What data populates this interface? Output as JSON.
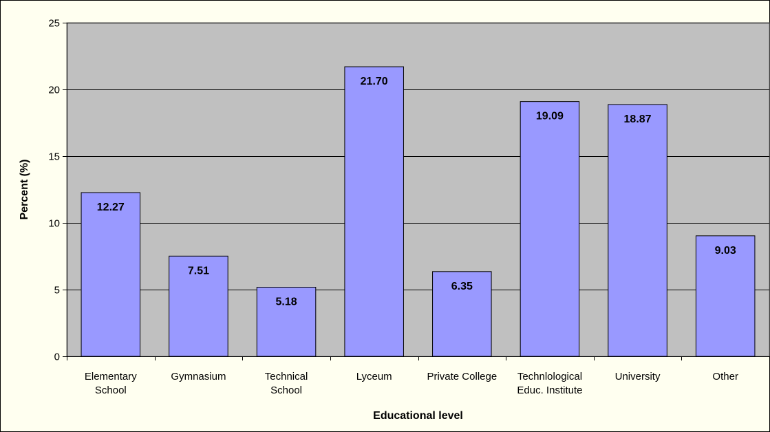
{
  "chart_data": {
    "type": "bar",
    "title": "",
    "xlabel": "Educational level",
    "ylabel": "Percent (%)",
    "ylim": [
      0,
      25
    ],
    "yticks": [
      0,
      5,
      10,
      15,
      20,
      25
    ],
    "grid": true,
    "legend": "none",
    "categories": [
      [
        "Elementary",
        "School"
      ],
      [
        "Gymnasium"
      ],
      [
        "Technical",
        "School"
      ],
      [
        "Lyceum"
      ],
      [
        "Private College"
      ],
      [
        "Technlological",
        "Educ. Institute"
      ],
      [
        "University"
      ],
      [
        "Other"
      ]
    ],
    "values": [
      12.27,
      7.51,
      5.18,
      21.7,
      6.35,
      19.09,
      18.87,
      9.03
    ],
    "value_labels": [
      "12.27",
      "7.51",
      "5.18",
      "21.70",
      "6.35",
      "19.09",
      "18.87",
      "9.03"
    ]
  },
  "colors": {
    "page_background": "#FFFFF0",
    "plot_background": "#C0C0C0",
    "bar_fill": "#9999FF",
    "bar_stroke": "#000000",
    "gridline": "#000000",
    "axis": "#000000"
  }
}
